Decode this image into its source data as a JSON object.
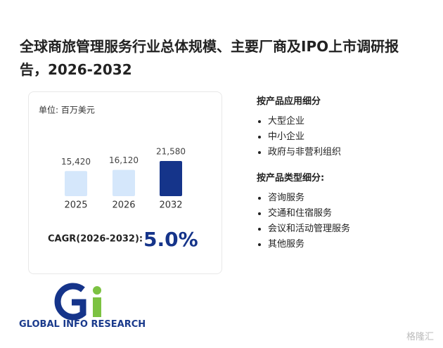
{
  "chart_data": {
    "type": "bar",
    "title": "全球商旅管理服务行业总体规模、主要厂商及IPO上市调研报告，2026-2032",
    "unit": "单位: 百万美元",
    "categories": [
      "2025",
      "2026",
      "2032"
    ],
    "values": [
      15420,
      16120,
      21580
    ],
    "value_labels": [
      "15,420",
      "16,120",
      "21,580"
    ],
    "colors": [
      "#d5e7fb",
      "#d5e7fb",
      "#15348a"
    ]
  },
  "cagr": {
    "label": "CAGR(2026-2032):",
    "value": "5.0%"
  },
  "segments": [
    {
      "title": "按产品应用细分",
      "items": [
        "大型企业",
        "中小企业",
        "政府与非营利组织"
      ]
    },
    {
      "title": "按产品类型细分:",
      "items": [
        "咨询服务",
        "交通和住宿服务",
        "会议和活动管理服务",
        "其他服务"
      ]
    }
  ],
  "logo": "GLOBAL INFO RESEARCH",
  "watermark": "格隆汇"
}
